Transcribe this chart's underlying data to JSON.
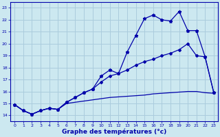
{
  "title": "Graphe des températures (°c)",
  "bg_color": "#cce8f0",
  "grid_color": "#aaccdd",
  "line_color": "#0000aa",
  "xlim": [
    -0.5,
    23.5
  ],
  "ylim": [
    13.5,
    23.5
  ],
  "xticks": [
    0,
    1,
    2,
    3,
    4,
    5,
    6,
    7,
    8,
    9,
    10,
    11,
    12,
    13,
    14,
    15,
    16,
    17,
    18,
    19,
    20,
    21,
    22,
    23
  ],
  "yticks": [
    14,
    15,
    16,
    17,
    18,
    19,
    20,
    21,
    22,
    23
  ],
  "curve1_x": [
    0,
    1,
    2,
    3,
    4,
    5,
    6,
    7,
    8,
    9,
    10,
    11,
    12,
    13,
    14,
    15,
    16,
    17,
    18,
    19,
    20,
    21,
    22,
    23
  ],
  "curve1_y": [
    14.9,
    14.4,
    14.1,
    14.4,
    14.6,
    14.5,
    15.1,
    15.5,
    15.9,
    16.2,
    17.3,
    17.8,
    17.5,
    19.3,
    20.7,
    22.1,
    22.4,
    22.0,
    21.9,
    22.7,
    21.1,
    21.1,
    18.9,
    15.9
  ],
  "curve2_x": [
    0,
    1,
    2,
    3,
    4,
    5,
    6,
    7,
    8,
    9,
    10,
    11,
    12,
    13,
    14,
    15,
    16,
    17,
    18,
    19,
    20,
    21,
    22,
    23
  ],
  "curve2_y": [
    14.9,
    14.4,
    14.1,
    14.4,
    14.6,
    14.5,
    15.1,
    15.5,
    15.9,
    16.2,
    16.8,
    17.3,
    17.5,
    17.8,
    18.2,
    18.5,
    18.7,
    19.0,
    19.2,
    19.5,
    20.0,
    19.0,
    18.9,
    15.9
  ],
  "curve3_x": [
    0,
    1,
    2,
    3,
    4,
    5,
    6,
    7,
    8,
    9,
    10,
    11,
    12,
    13,
    14,
    15,
    16,
    17,
    18,
    19,
    20,
    21,
    22,
    23
  ],
  "curve3_y": [
    14.9,
    14.4,
    14.1,
    14.4,
    14.6,
    14.5,
    15.0,
    15.1,
    15.2,
    15.3,
    15.4,
    15.5,
    15.55,
    15.6,
    15.65,
    15.7,
    15.8,
    15.85,
    15.9,
    15.95,
    16.0,
    16.0,
    15.9,
    15.85
  ]
}
